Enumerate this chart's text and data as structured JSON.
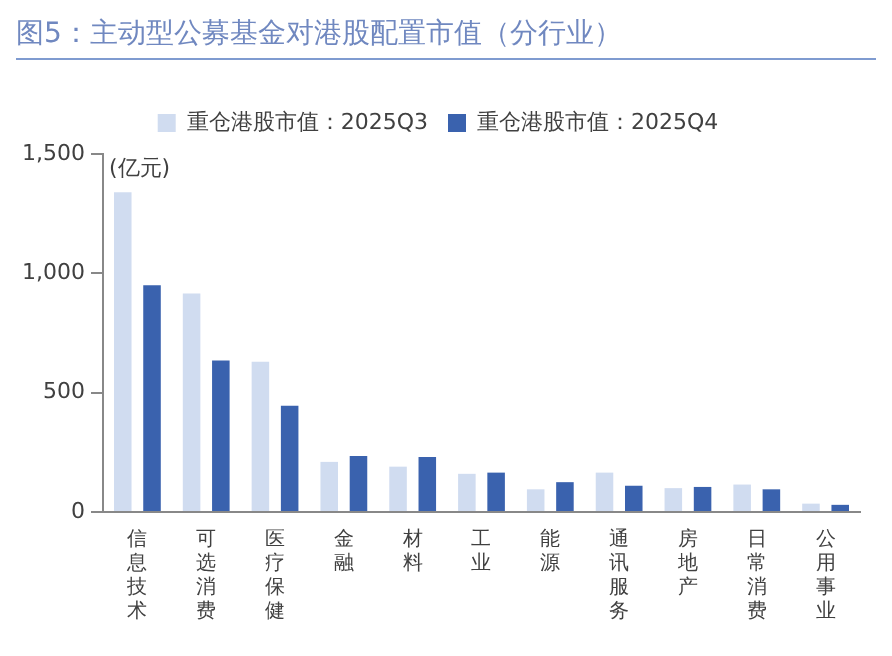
{
  "chart_data": {
    "type": "bar",
    "title": "图5：主动型公募基金对港股配置市值（分行业）",
    "ylabel": "(亿元)",
    "categories": [
      "信息技术",
      "可选消费",
      "医疗保健",
      "金融",
      "材料",
      "工业",
      "能源",
      "通讯服务",
      "房地产",
      "日常消费",
      "公用事业"
    ],
    "series": [
      {
        "name": "重仓港股市值：2025Q3",
        "color": "#d0dcf0",
        "values": [
          1340,
          915,
          630,
          210,
          190,
          160,
          95,
          165,
          100,
          115,
          35
        ]
      },
      {
        "name": "重仓港股市值：2025Q4",
        "color": "#3a62ae",
        "values": [
          950,
          635,
          445,
          235,
          230,
          165,
          125,
          110,
          105,
          95,
          30
        ]
      }
    ],
    "ylim": [
      0,
      1500
    ],
    "yticks": [
      {
        "value": 0,
        "label": "0"
      },
      {
        "value": 500,
        "label": "500"
      },
      {
        "value": 1000,
        "label": "1,000"
      },
      {
        "value": 1500,
        "label": "1,500"
      }
    ],
    "grid": false,
    "legend": "top"
  }
}
